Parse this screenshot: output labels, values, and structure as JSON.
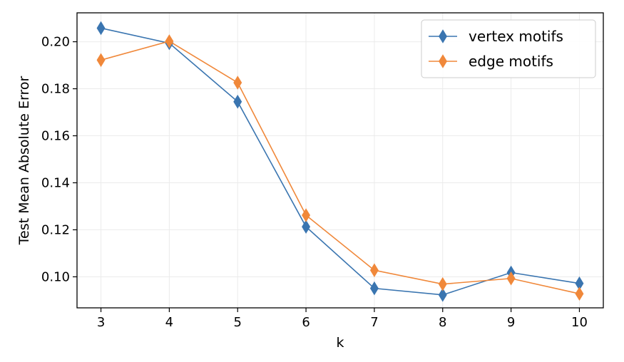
{
  "chart_data": {
    "type": "line",
    "x": [
      3,
      4,
      5,
      6,
      7,
      8,
      9,
      10
    ],
    "series": [
      {
        "name": "vertex motifs",
        "color": "#3a75b0",
        "values": [
          0.2058,
          0.1994,
          0.1745,
          0.1213,
          0.0951,
          0.0923,
          0.1018,
          0.0972
        ]
      },
      {
        "name": "edge motifs",
        "color": "#f0883a",
        "values": [
          0.1922,
          0.2002,
          0.1826,
          0.1262,
          0.1028,
          0.0969,
          0.0993,
          0.0928
        ]
      }
    ],
    "xlabel": "k",
    "ylabel": "Test Mean Absolute Error",
    "xlim": [
      2.65,
      10.35
    ],
    "ylim": [
      0.0868,
      0.2123
    ],
    "xticks": [
      3,
      4,
      5,
      6,
      7,
      8,
      9,
      10
    ],
    "yticks": [
      0.1,
      0.12,
      0.14,
      0.16,
      0.18,
      0.2
    ],
    "ytick_labels": [
      "0.10",
      "0.12",
      "0.14",
      "0.16",
      "0.18",
      "0.20"
    ],
    "grid": true,
    "legend_position": "top-right",
    "marker": "diamond"
  }
}
